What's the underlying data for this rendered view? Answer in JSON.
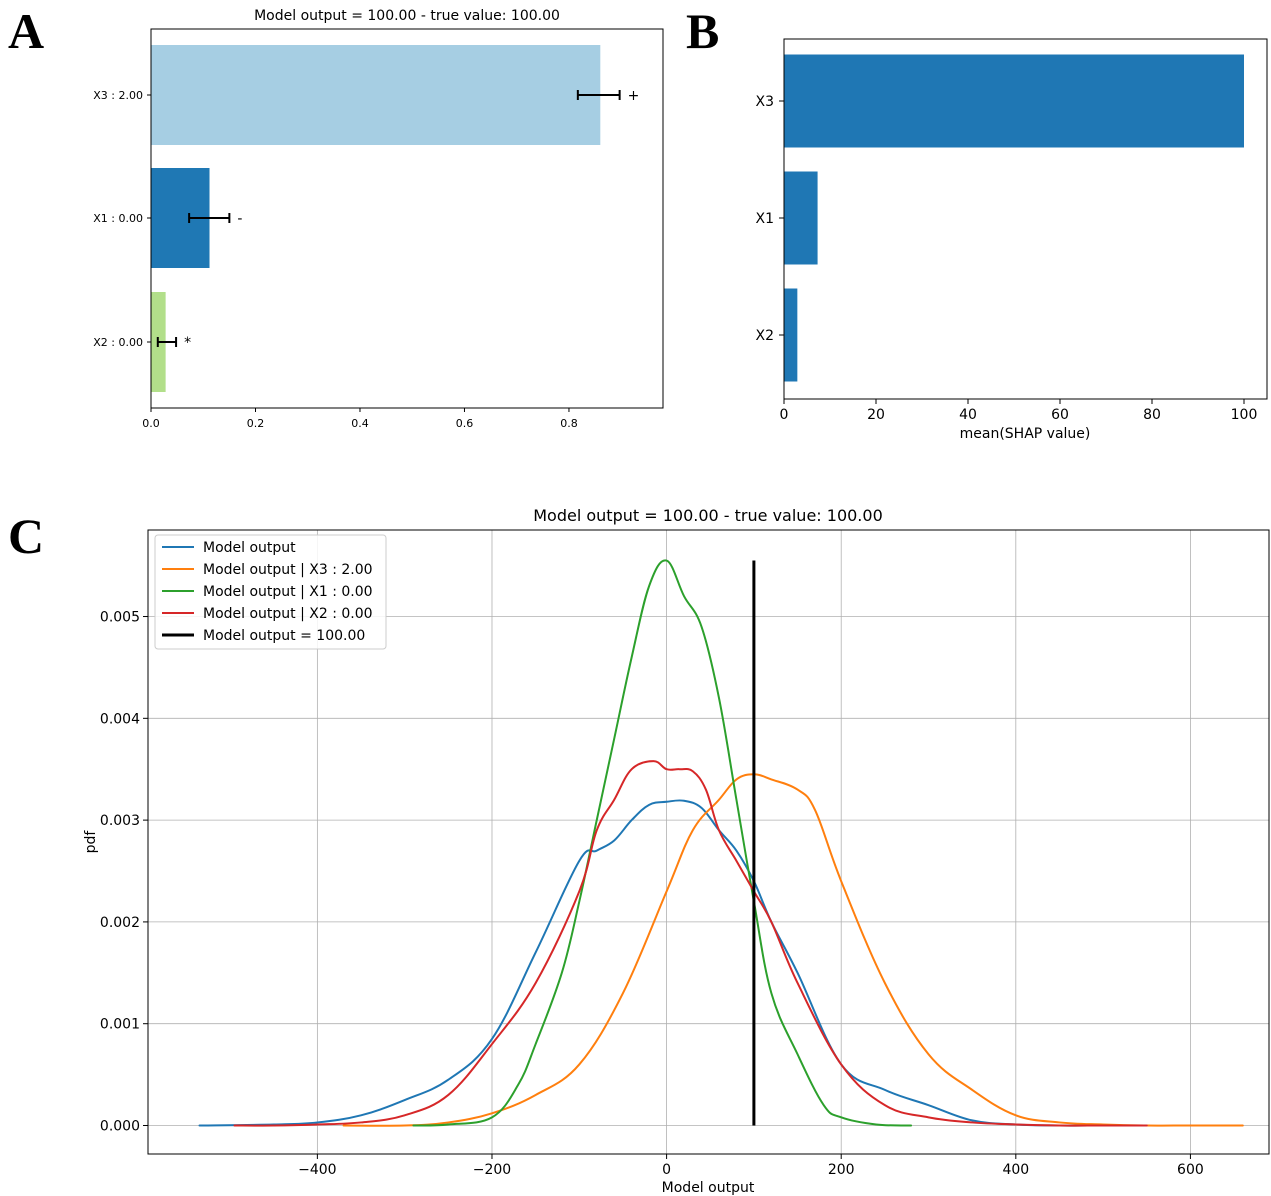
{
  "panels": {
    "a": "A",
    "b": "B",
    "c": "C"
  },
  "chart_data": [
    {
      "panel": "A",
      "type": "bar",
      "orientation": "horizontal",
      "title": "Model output = 100.00 - true value: 100.00",
      "categories": [
        "X3 : 2.00",
        "X1 : 0.00",
        "X2 : 0.00"
      ],
      "values": [
        0.86,
        0.112,
        0.028
      ],
      "error_low": [
        0.817,
        0.073,
        0.013
      ],
      "error_high": [
        0.897,
        0.15,
        0.048
      ],
      "markers": [
        "+",
        "-",
        "*"
      ],
      "colors": [
        "#a6cee3",
        "#1f78b4",
        "#b2df8a"
      ],
      "xlim": [
        0.0,
        0.98
      ],
      "xticks": [
        "0.0",
        "0.2",
        "0.4",
        "0.6",
        "0.8"
      ],
      "grid": false
    },
    {
      "panel": "B",
      "type": "bar",
      "orientation": "horizontal",
      "categories": [
        "X3",
        "X1",
        "X2"
      ],
      "values": [
        100.0,
        7.3,
        2.9
      ],
      "color": "#1f77b4",
      "xlabel": "mean(SHAP value)",
      "xlim": [
        0,
        105
      ],
      "xticks": [
        "0",
        "20",
        "40",
        "60",
        "80",
        "100"
      ],
      "grid": false
    },
    {
      "panel": "C",
      "type": "line",
      "title": "Model output = 100.00 - true value: 100.00",
      "xlabel": "Model output",
      "ylabel": "pdf",
      "xlim": [
        -594,
        690
      ],
      "ylim": [
        -0.00028,
        0.00585
      ],
      "xticks": [
        "−400",
        "−200",
        "0",
        "200",
        "400",
        "600"
      ],
      "yticks": [
        "0.000",
        "0.001",
        "0.002",
        "0.003",
        "0.004",
        "0.005"
      ],
      "grid": true,
      "legend_position": "top-left",
      "series": [
        {
          "name": "Model output",
          "color": "#1f77b4",
          "x": [
            -535,
            -450,
            -400,
            -350,
            -300,
            -250,
            -200,
            -150,
            -100,
            -80,
            -60,
            -40,
            -20,
            0,
            20,
            40,
            60,
            80,
            100,
            120,
            150,
            200,
            250,
            300,
            350,
            400,
            450,
            500,
            550
          ],
          "y": [
            0.0,
            1e-05,
            3e-05,
            0.0001,
            0.00025,
            0.00045,
            0.00085,
            0.0017,
            0.0026,
            0.0027,
            0.0028,
            0.003,
            0.00315,
            0.00318,
            0.00319,
            0.00312,
            0.0029,
            0.0027,
            0.0024,
            0.002,
            0.0015,
            0.0006,
            0.00035,
            0.0002,
            5e-05,
            1e-05,
            0.0,
            0.0,
            0.0
          ]
        },
        {
          "name": "Model output | X3 : 2.00",
          "color": "#ff7f0e",
          "x": [
            -370,
            -300,
            -250,
            -200,
            -150,
            -100,
            -50,
            0,
            30,
            60,
            80,
            100,
            120,
            150,
            170,
            200,
            250,
            300,
            350,
            400,
            450,
            500,
            550,
            600,
            660
          ],
          "y": [
            0.0,
            0.0,
            3e-05,
            0.00012,
            0.0003,
            0.0006,
            0.0013,
            0.0023,
            0.0029,
            0.0032,
            0.0034,
            0.00345,
            0.0034,
            0.0033,
            0.0031,
            0.0024,
            0.0014,
            0.0007,
            0.00035,
            0.0001,
            3e-05,
            1e-05,
            0.0,
            0.0,
            0.0
          ]
        },
        {
          "name": "Model output | X1 : 0.00",
          "color": "#2ca02c",
          "x": [
            -290,
            -250,
            -200,
            -170,
            -150,
            -120,
            -100,
            -80,
            -60,
            -40,
            -20,
            0,
            20,
            40,
            60,
            80,
            100,
            120,
            150,
            180,
            200,
            240,
            280
          ],
          "y": [
            0.0,
            1e-05,
            8e-05,
            0.0004,
            0.0008,
            0.0015,
            0.0022,
            0.003,
            0.0038,
            0.0046,
            0.0053,
            0.00555,
            0.0052,
            0.0049,
            0.0042,
            0.0032,
            0.0022,
            0.0013,
            0.0007,
            0.0002,
            8e-05,
            1e-05,
            0.0
          ]
        },
        {
          "name": "Model output | X2 : 0.00",
          "color": "#d62728",
          "x": [
            -495,
            -450,
            -400,
            -350,
            -300,
            -250,
            -200,
            -150,
            -100,
            -80,
            -60,
            -40,
            -15,
            0,
            15,
            30,
            45,
            60,
            80,
            100,
            120,
            150,
            200,
            250,
            300,
            350,
            400,
            450,
            500,
            550
          ],
          "y": [
            0.0,
            0.0,
            1e-05,
            3e-05,
            0.0001,
            0.0003,
            0.0008,
            0.0014,
            0.0023,
            0.0029,
            0.0032,
            0.0035,
            0.00358,
            0.0035,
            0.0035,
            0.00348,
            0.0033,
            0.0029,
            0.0026,
            0.0023,
            0.002,
            0.0014,
            0.0006,
            0.0002,
            8e-05,
            3e-05,
            1e-05,
            0.0,
            0.0,
            0.0
          ]
        },
        {
          "name": "Model output = 100.00",
          "color": "#000000",
          "type": "vline",
          "x": [
            100,
            100
          ],
          "y": [
            0.0,
            0.00555
          ]
        }
      ]
    }
  ]
}
